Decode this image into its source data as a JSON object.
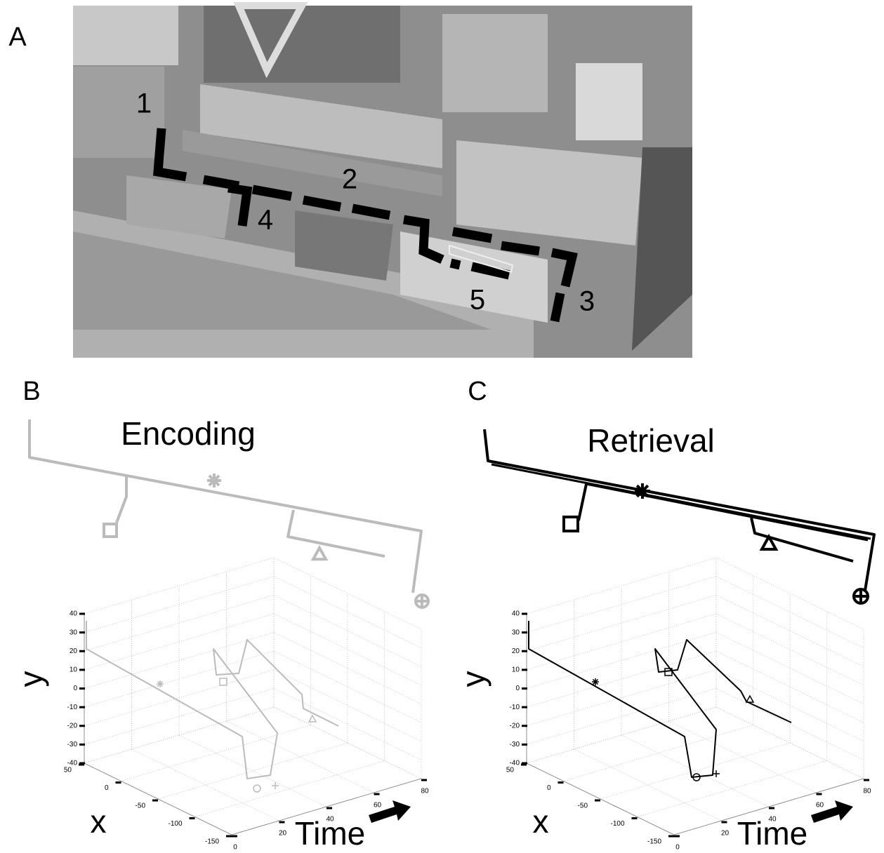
{
  "panels": [
    {
      "label": "A",
      "map_labels": [
        "1",
        "2",
        "3",
        "4",
        "5"
      ]
    },
    {
      "label": "B",
      "title": "Encoding",
      "plot": {
        "y_label": "y",
        "x_label": "x",
        "time_label": "Time",
        "y_ticks": [
          40,
          30,
          20,
          10,
          0,
          -10,
          -20,
          -30,
          -40
        ],
        "x_ticks": [
          50,
          0,
          -50,
          -100,
          -150
        ],
        "time_ticks": [
          0,
          20,
          40,
          60,
          80
        ]
      }
    },
    {
      "label": "C",
      "title": "Retrieval",
      "plot": {
        "y_label": "y",
        "x_label": "x",
        "time_label": "Time",
        "y_ticks": [
          40,
          30,
          20,
          10,
          0,
          -10,
          -20,
          -30,
          -40
        ],
        "x_ticks": [
          50,
          0,
          -50,
          -100,
          -150
        ],
        "time_ticks": [
          0,
          20,
          40,
          60,
          80
        ]
      }
    }
  ]
}
